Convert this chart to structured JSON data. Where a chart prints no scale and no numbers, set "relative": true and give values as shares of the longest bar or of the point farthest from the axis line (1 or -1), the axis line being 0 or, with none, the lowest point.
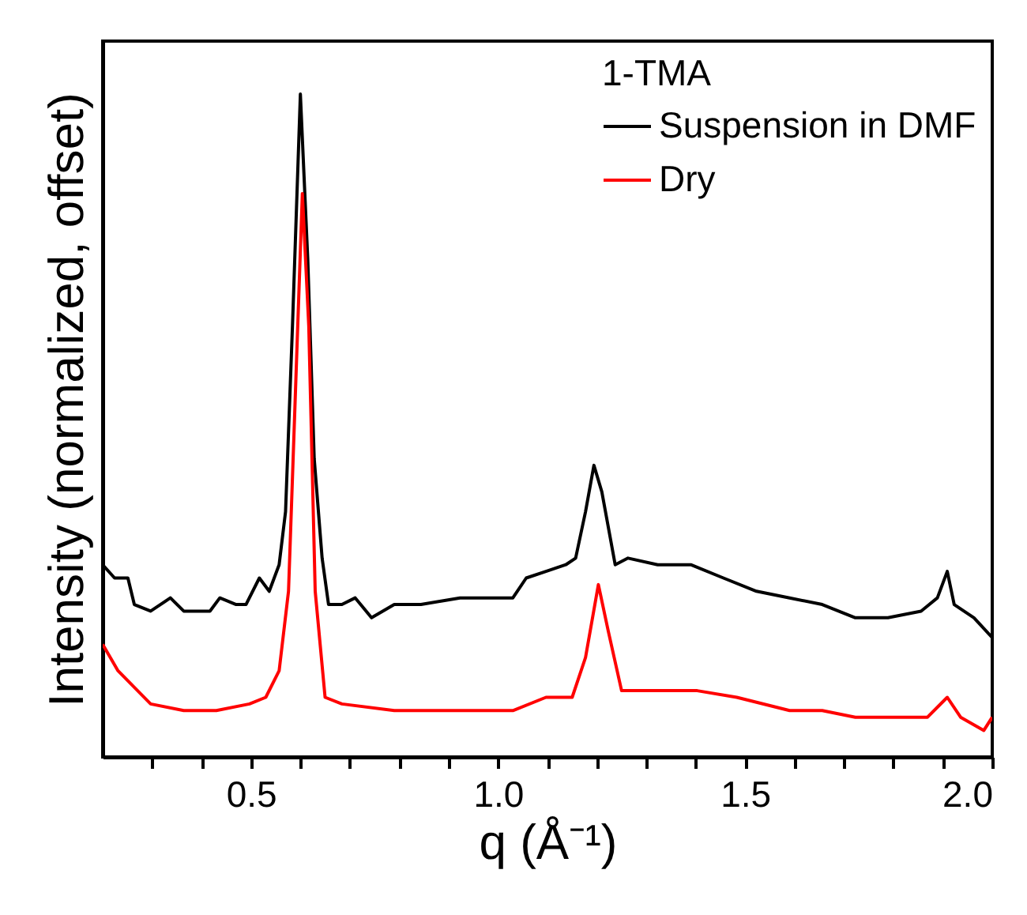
{
  "chart_data": {
    "type": "line",
    "relative": true,
    "xlabel": "q (Å⁻¹)",
    "ylabel": "Intensity (normalized, offset)",
    "legend_title": "1-TMA",
    "legend": "top right",
    "xlim": [
      0.2,
      2.0
    ],
    "xticks": [
      {
        "value": 0.3,
        "label": null
      },
      {
        "value": 0.4,
        "label": null
      },
      0.5,
      {
        "value": 0.6,
        "label": null
      },
      {
        "value": 0.7,
        "label": null
      },
      {
        "value": 0.8,
        "label": null
      },
      {
        "value": 0.9,
        "label": null
      },
      {
        "value": 1.0,
        "label": "1.0"
      },
      {
        "value": 1.1,
        "label": null
      },
      {
        "value": 1.2,
        "label": null
      },
      {
        "value": 1.3,
        "label": null
      },
      {
        "value": 1.4,
        "label": null
      },
      1.5,
      {
        "value": 1.6,
        "label": null
      },
      {
        "value": 1.7,
        "label": null
      },
      {
        "value": 1.8,
        "label": null
      },
      {
        "value": 1.9,
        "label": null
      },
      {
        "value": 2.0,
        "label": "2.0"
      }
    ],
    "series": [
      {
        "name": "Suspension in DMF",
        "color": "#000000",
        "x": [
          0.2,
          0.224,
          0.251,
          0.264,
          0.297,
          0.337,
          0.364,
          0.417,
          0.437,
          0.47,
          0.49,
          0.517,
          0.537,
          0.557,
          0.57,
          0.584,
          0.6,
          0.615,
          0.628,
          0.644,
          0.657,
          0.684,
          0.711,
          0.744,
          0.79,
          0.844,
          0.923,
          0.977,
          1.03,
          1.057,
          1.097,
          1.137,
          1.157,
          1.177,
          1.194,
          1.21,
          1.237,
          1.263,
          1.323,
          1.39,
          1.456,
          1.523,
          1.59,
          1.656,
          1.723,
          1.789,
          1.856,
          1.889,
          1.909,
          1.923,
          1.963,
          2.0
        ],
        "values": [
          0.29,
          0.27,
          0.27,
          0.23,
          0.22,
          0.24,
          0.22,
          0.22,
          0.24,
          0.23,
          0.23,
          0.27,
          0.25,
          0.29,
          0.37,
          0.65,
          1,
          0.75,
          0.45,
          0.3,
          0.23,
          0.23,
          0.24,
          0.21,
          0.23,
          0.23,
          0.24,
          0.24,
          0.24,
          0.27,
          0.28,
          0.29,
          0.3,
          0.37,
          0.44,
          0.4,
          0.29,
          0.3,
          0.29,
          0.29,
          0.27,
          0.25,
          0.24,
          0.23,
          0.21,
          0.21,
          0.22,
          0.24,
          0.28,
          0.23,
          0.21,
          0.18
        ]
      },
      {
        "name": "Dry",
        "color": "#ff0000",
        "x": [
          0.2,
          0.231,
          0.297,
          0.364,
          0.43,
          0.497,
          0.53,
          0.557,
          0.576,
          0.59,
          0.604,
          0.617,
          0.63,
          0.65,
          0.684,
          0.79,
          0.923,
          1.03,
          1.097,
          1.15,
          1.177,
          1.203,
          1.223,
          1.25,
          1.323,
          1.403,
          1.483,
          1.59,
          1.656,
          1.723,
          1.789,
          1.869,
          1.909,
          1.936,
          1.983,
          2.0
        ],
        "values": [
          0.17,
          0.13,
          0.08,
          0.07,
          0.07,
          0.08,
          0.09,
          0.13,
          0.25,
          0.55,
          0.85,
          0.65,
          0.25,
          0.09,
          0.08,
          0.07,
          0.07,
          0.07,
          0.09,
          0.09,
          0.15,
          0.26,
          0.19,
          0.1,
          0.1,
          0.1,
          0.09,
          0.07,
          0.07,
          0.06,
          0.06,
          0.06,
          0.09,
          0.06,
          0.04,
          0.06
        ]
      }
    ]
  }
}
